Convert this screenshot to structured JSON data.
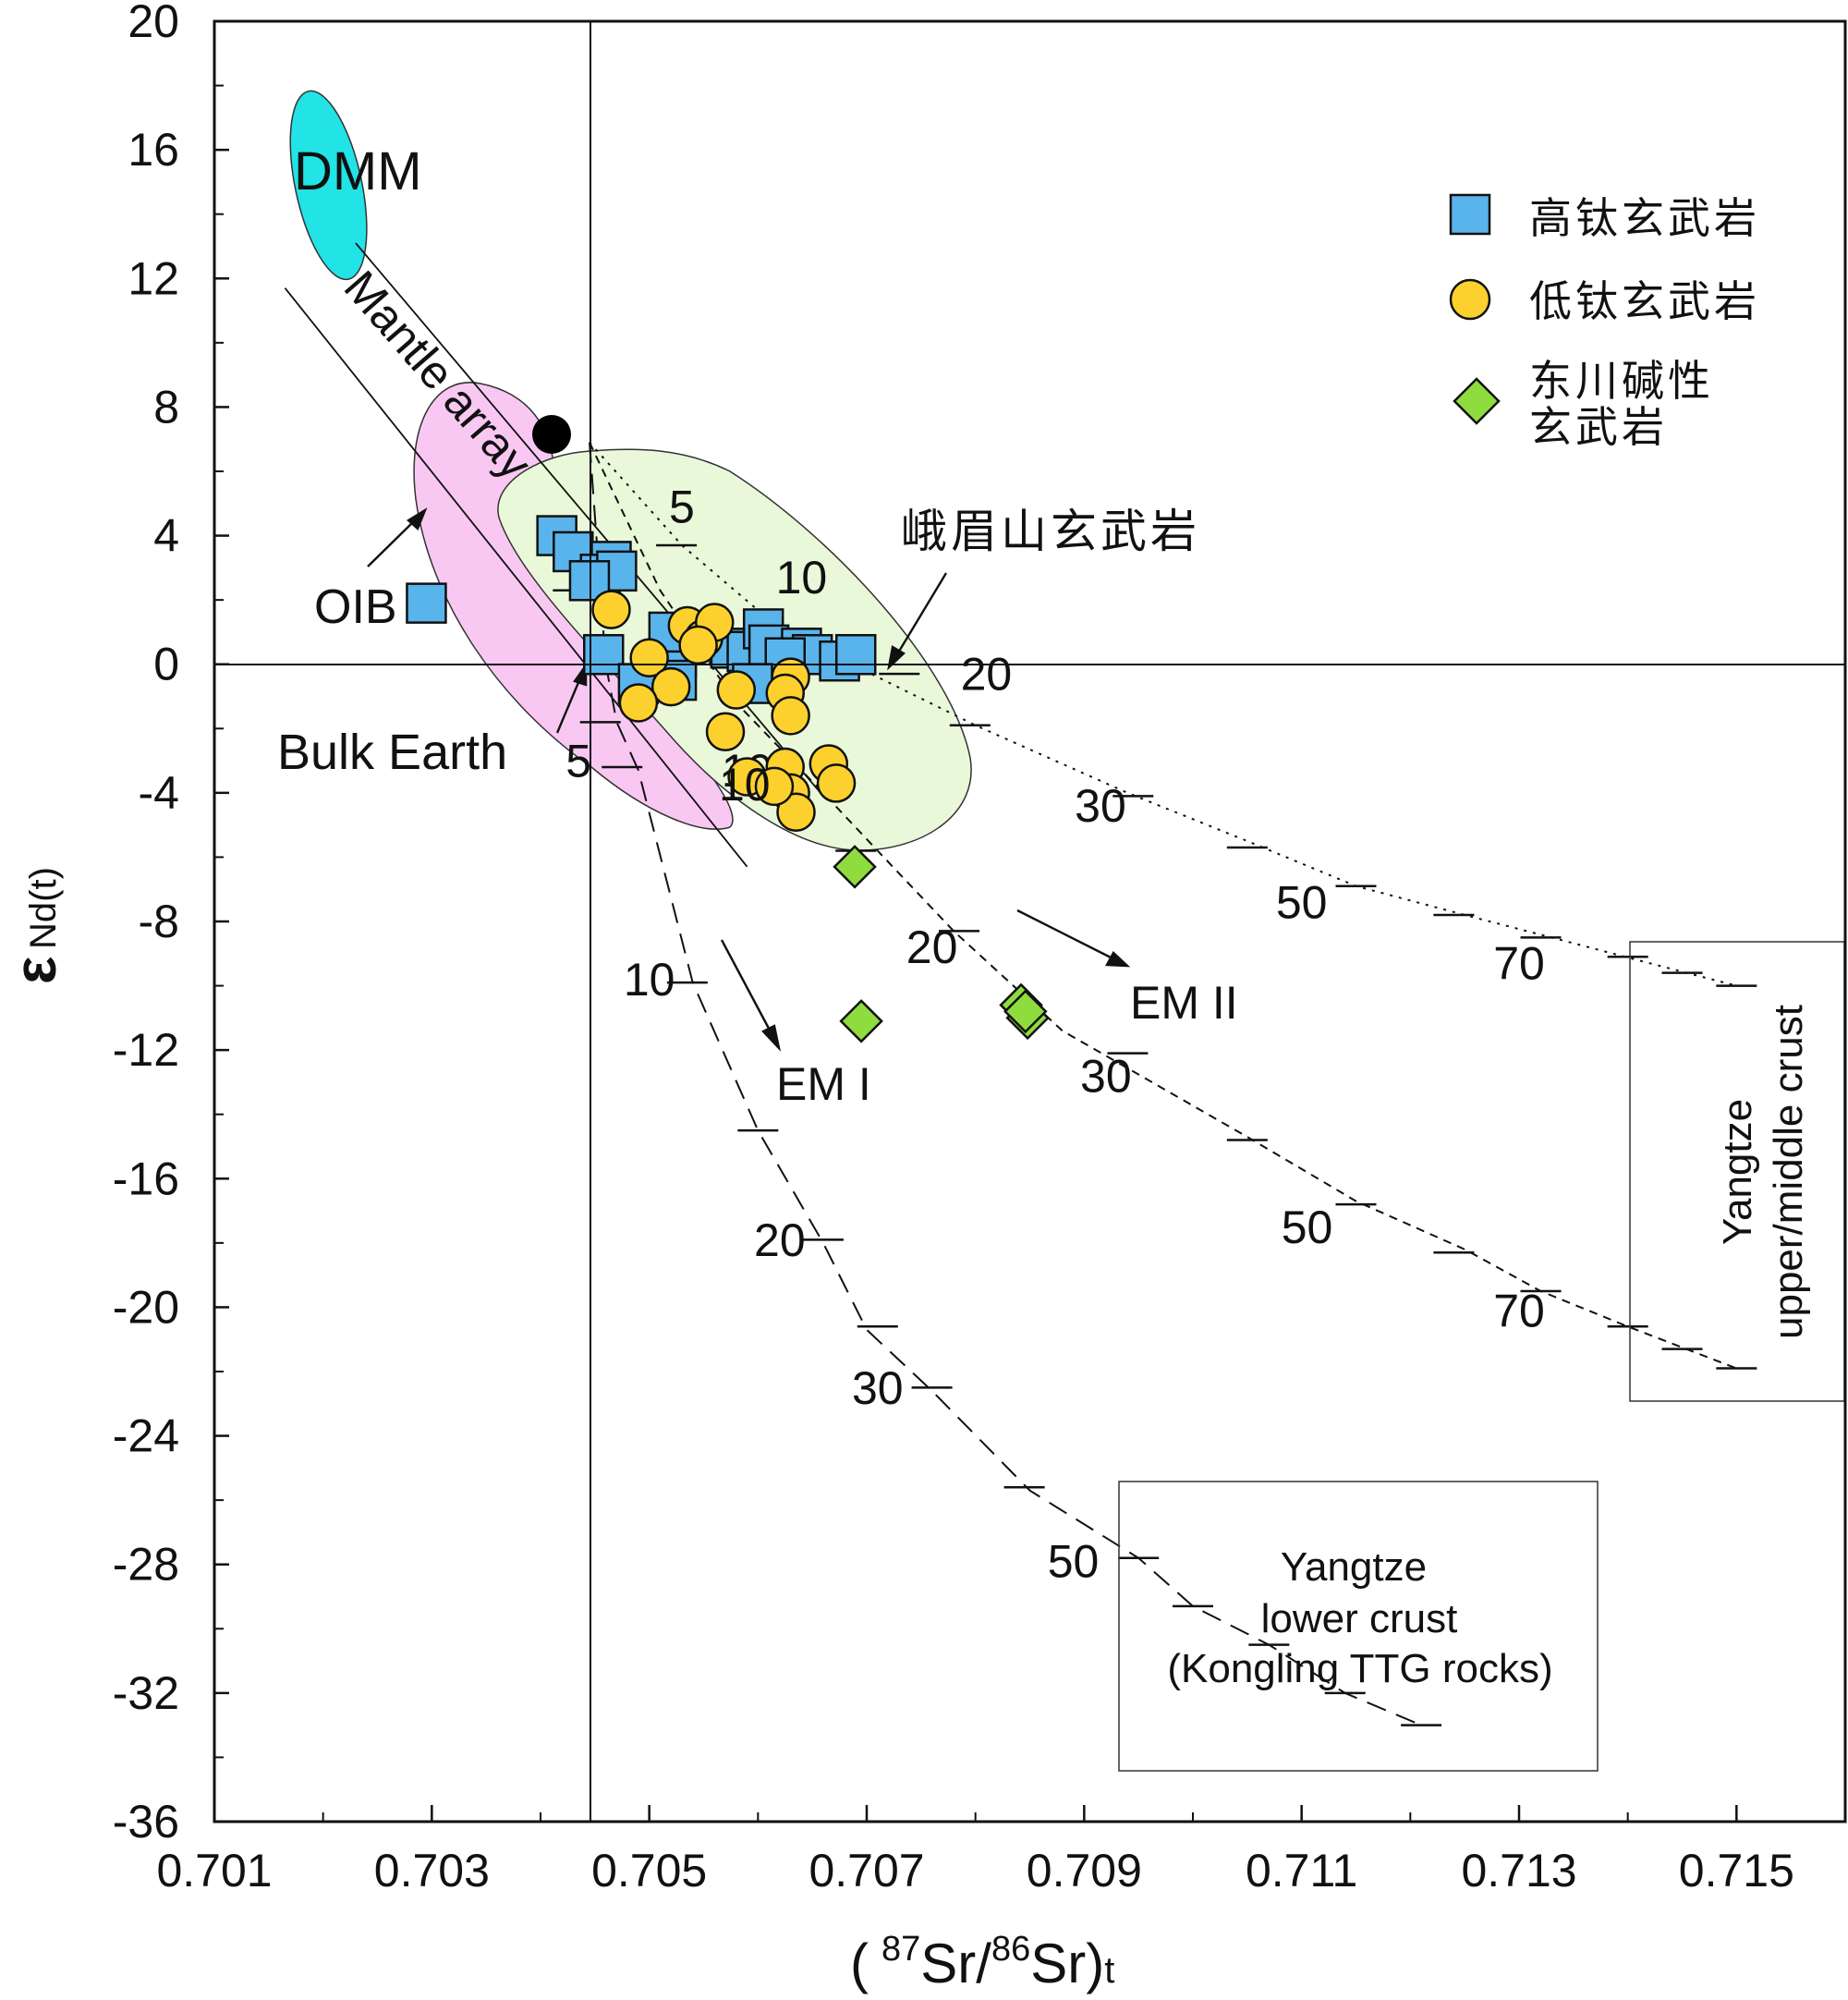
{
  "chart_data": {
    "type": "scatter",
    "title": "",
    "xlabel": {
      "open": "(",
      "sup1": "87",
      "sr1": "Sr/",
      "sup2": "86",
      "sr2": "Sr)",
      "sub": "t"
    },
    "ylabel": {
      "epsilon": "ε",
      "sub": "Nd(t)"
    },
    "xlim": [
      0.701,
      0.716
    ],
    "ylim": [
      -36,
      20
    ],
    "x_ticks": [
      0.701,
      0.703,
      0.705,
      0.707,
      0.709,
      0.711,
      0.713,
      0.715
    ],
    "x_tick_labels": [
      "0.701",
      "0.703",
      "0.705",
      "0.707",
      "0.709",
      "0.711",
      "0.713",
      "0.715"
    ],
    "y_ticks": [
      20,
      16,
      12,
      8,
      4,
      0,
      -4,
      -8,
      -12,
      -16,
      -20,
      -24,
      -28,
      -32,
      -36
    ],
    "y_tick_labels": [
      "20",
      "16",
      "12",
      "8",
      "4",
      "0",
      "-4",
      "-8",
      "-12",
      "-16",
      "-20",
      "-24",
      "-28",
      "-32",
      "-36"
    ],
    "bulk_earth": {
      "x": 0.70445,
      "y": 0
    },
    "legend": [
      {
        "key": "high_ti",
        "label": "高钛玄武岩",
        "marker": "square",
        "color": "#5ab4ec"
      },
      {
        "key": "low_ti",
        "label": "低钛玄武岩",
        "marker": "circle",
        "color": "#fcd12e"
      },
      {
        "key": "dongchuan",
        "label1": "东川碱性",
        "label2": "玄武岩",
        "marker": "diamond",
        "color": "#8fdc3e"
      }
    ],
    "series": [
      {
        "name": "高钛玄武岩",
        "marker": "square",
        "color": "#5ab4ec",
        "points": [
          [
            0.70295,
            1.9
          ],
          [
            0.70415,
            4.0
          ],
          [
            0.7043,
            3.5
          ],
          [
            0.70465,
            3.2
          ],
          [
            0.70455,
            2.8
          ],
          [
            0.7047,
            2.9
          ],
          [
            0.70445,
            2.6
          ],
          [
            0.70458,
            0.3
          ],
          [
            0.7049,
            -0.6
          ],
          [
            0.70525,
            0.2
          ],
          [
            0.70518,
            1.0
          ],
          [
            0.70525,
            -0.5
          ],
          [
            0.70575,
            0.5
          ],
          [
            0.7059,
            0.4
          ],
          [
            0.70605,
            1.1
          ],
          [
            0.7061,
            0.6
          ],
          [
            0.7064,
            0.5
          ],
          [
            0.7065,
            0.3
          ],
          [
            0.70675,
            0.1
          ],
          [
            0.7069,
            0.3
          ],
          [
            0.70625,
            0.2
          ],
          [
            0.70595,
            -0.6
          ]
        ]
      },
      {
        "name": "低钛玄武岩",
        "marker": "circle",
        "color": "#fcd12e",
        "points": [
          [
            0.70465,
            1.7
          ],
          [
            0.705,
            0.2
          ],
          [
            0.70535,
            1.2
          ],
          [
            0.7055,
            0.8
          ],
          [
            0.7056,
            1.3
          ],
          [
            0.70545,
            0.6
          ],
          [
            0.7052,
            -0.7
          ],
          [
            0.7049,
            -1.2
          ],
          [
            0.7058,
            -0.8
          ],
          [
            0.7063,
            -0.4
          ],
          [
            0.70625,
            -0.9
          ],
          [
            0.7057,
            -2.1
          ],
          [
            0.7063,
            -1.6
          ],
          [
            0.7059,
            -3.5
          ],
          [
            0.70625,
            -3.2
          ],
          [
            0.70665,
            -3.1
          ],
          [
            0.70672,
            -3.7
          ],
          [
            0.7063,
            -4.0
          ],
          [
            0.70635,
            -4.6
          ],
          [
            0.70615,
            -3.8
          ]
        ]
      },
      {
        "name": "东川碱性玄武岩",
        "marker": "diamond",
        "color": "#8fdc3e",
        "points": [
          [
            0.70689,
            -6.3
          ],
          [
            0.70695,
            -11.1
          ],
          [
            0.70842,
            -10.6
          ],
          [
            0.70848,
            -11.0
          ],
          [
            0.70846,
            -10.8
          ]
        ]
      }
    ],
    "curves": [
      {
        "name": "dotted",
        "style": "dotted",
        "points": [
          [
            0.70445,
            6.9
          ],
          [
            0.7053,
            3.7
          ],
          [
            0.7062,
            1.1
          ],
          [
            0.7071,
            -0.4
          ],
          [
            0.708,
            -1.9
          ],
          [
            0.7094,
            -4.0
          ],
          [
            0.7105,
            -5.5
          ],
          [
            0.7115,
            -6.9
          ],
          [
            0.7125,
            -7.8
          ],
          [
            0.7133,
            -8.5
          ],
          [
            0.7142,
            -9.3
          ],
          [
            0.715,
            -10.0
          ]
        ],
        "ticks": [
          [
            0.70525,
            3.7
          ],
          [
            0.7073,
            -0.3
          ],
          [
            0.70795,
            -1.9
          ],
          [
            0.70945,
            -4.1
          ],
          [
            0.7105,
            -5.7
          ],
          [
            0.7115,
            -6.9
          ],
          [
            0.7124,
            -7.8
          ],
          [
            0.7132,
            -8.5
          ],
          [
            0.714,
            -9.1
          ],
          [
            0.7145,
            -9.6
          ],
          [
            0.715,
            -10.0
          ]
        ],
        "labels": [
          {
            "text": "5",
            "x": 0.7053,
            "y": 4.4
          },
          {
            "text": "10",
            "x": 0.7064,
            "y": 2.2
          },
          {
            "text": "20",
            "x": 0.7081,
            "y": -0.8
          },
          {
            "text": "30",
            "x": 0.70915,
            "y": -4.9
          },
          {
            "text": "50",
            "x": 0.711,
            "y": -7.9
          },
          {
            "text": "70",
            "x": 0.713,
            "y": -9.8
          }
        ]
      },
      {
        "name": "EMII-curve",
        "style": "short-dash",
        "points": [
          [
            0.70445,
            6.9
          ],
          [
            0.7051,
            2.3
          ],
          [
            0.7058,
            -1.2
          ],
          [
            0.7066,
            -4.0
          ],
          [
            0.7071,
            -5.8
          ],
          [
            0.7078,
            -8.3
          ],
          [
            0.7088,
            -11.4
          ],
          [
            0.7105,
            -14.7
          ],
          [
            0.7115,
            -16.7
          ],
          [
            0.7125,
            -18.2
          ],
          [
            0.7132,
            -19.5
          ],
          [
            0.714,
            -20.6
          ],
          [
            0.715,
            -21.9
          ]
        ],
        "ticks": [
          [
            0.7043,
            2.3
          ],
          [
            0.7069,
            -5.8
          ],
          [
            0.70785,
            -8.3
          ],
          [
            0.7094,
            -12.1
          ],
          [
            0.7105,
            -14.8
          ],
          [
            0.7115,
            -16.8
          ],
          [
            0.7124,
            -18.3
          ],
          [
            0.7132,
            -19.5
          ],
          [
            0.714,
            -20.6
          ],
          [
            0.7145,
            -21.3
          ],
          [
            0.715,
            -21.9
          ]
        ],
        "labels": [
          {
            "text": "10",
            "x": 0.7059,
            "y": -3.8
          },
          {
            "text": "20",
            "x": 0.7076,
            "y": -9.3
          },
          {
            "text": "30",
            "x": 0.7092,
            "y": -13.3
          },
          {
            "text": "50",
            "x": 0.71105,
            "y": -18.0
          },
          {
            "text": "70",
            "x": 0.713,
            "y": -20.6
          }
        ]
      },
      {
        "name": "EMI-curve",
        "style": "long-dash",
        "points": [
          [
            0.70445,
            6.9
          ],
          [
            0.7046,
            0.0
          ],
          [
            0.7047,
            -1.8
          ],
          [
            0.7049,
            -3.3
          ],
          [
            0.7054,
            -9.9
          ],
          [
            0.706,
            -14.5
          ],
          [
            0.7066,
            -18.0
          ],
          [
            0.707,
            -20.7
          ],
          [
            0.7076,
            -22.6
          ],
          [
            0.7085,
            -25.7
          ],
          [
            0.7095,
            -27.8
          ],
          [
            0.71,
            -29.3
          ],
          [
            0.7107,
            -30.5
          ],
          [
            0.7114,
            -32.0
          ],
          [
            0.7121,
            -33.0
          ]
        ],
        "ticks": [
          [
            0.70455,
            -1.8
          ],
          [
            0.70475,
            -3.2
          ],
          [
            0.70535,
            -9.9
          ],
          [
            0.706,
            -14.5
          ],
          [
            0.7066,
            -17.9
          ],
          [
            0.7071,
            -20.6
          ],
          [
            0.7076,
            -22.5
          ],
          [
            0.70845,
            -25.6
          ],
          [
            0.7095,
            -27.8
          ],
          [
            0.71,
            -29.3
          ],
          [
            0.7107,
            -30.5
          ],
          [
            0.7114,
            -32.0
          ],
          [
            0.7121,
            -33.0
          ]
        ],
        "labels": [
          {
            "text": "5",
            "x": 0.70435,
            "y": -3.5
          },
          {
            "text": "10",
            "x": 0.705,
            "y": -10.3
          },
          {
            "text": "20",
            "x": 0.7062,
            "y": -18.4
          },
          {
            "text": "30",
            "x": 0.7071,
            "y": -23.0
          },
          {
            "text": "50",
            "x": 0.7089,
            "y": -28.4
          }
        ]
      }
    ],
    "annotations": {
      "dmm": "DMM",
      "mantle_array": "Mantle array",
      "oib": "OIB",
      "bulk_earth": "Bulk Earth",
      "emeishan": "峨眉山玄武岩",
      "em1": "EM I",
      "em2": "EM II",
      "upper_crust_1": "Yangtze",
      "upper_crust_2": "upper/middle crust",
      "lower_crust_1": "Yangtze",
      "lower_crust_2": "lower crust",
      "lower_crust_3": "(Kongling TTG rocks)",
      "diagonal_label_10": "10"
    },
    "colors": {
      "dmm_fill": "#22e3e6",
      "oib_fill": "#f9c8f2",
      "emeishan_fill": "#e9f8d9",
      "high_ti": "#5ab4ec",
      "low_ti": "#fcd12e",
      "dongchuan": "#8fdc3e"
    }
  }
}
